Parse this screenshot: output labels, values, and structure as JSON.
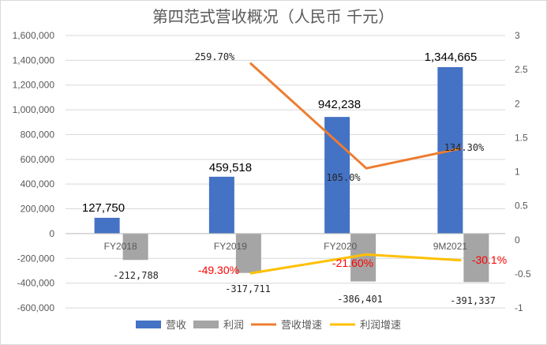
{
  "chart_data": {
    "type": "bar",
    "title": "第四范式营收概况（人民币 千元）",
    "categories": [
      "FY2018",
      "FY2019",
      "FY2020",
      "9M2021"
    ],
    "xlabel": "",
    "ylabel": "",
    "ylim": [
      -600000,
      1600000
    ],
    "y_ticks": [
      "1,600,000",
      "1,400,000",
      "1,200,000",
      "1,000,000",
      "800,000",
      "600,000",
      "400,000",
      "200,000",
      "0",
      "-200,000",
      "-400,000",
      "-600,000"
    ],
    "y2lim": [
      -1,
      3
    ],
    "y2_ticks": [
      "3",
      "2.5",
      "2",
      "1.5",
      "1",
      "0.5",
      "0",
      "-0.5",
      "-1"
    ],
    "grid": true,
    "legend_position": "bottom",
    "series": [
      {
        "name": "营收",
        "type": "bar",
        "axis": "left",
        "color": "#4472c4",
        "values": [
          127750,
          459518,
          942238,
          1344665
        ],
        "labels": [
          "127,750",
          "459,518",
          "942,238",
          "1,344,665"
        ]
      },
      {
        "name": "利润",
        "type": "bar",
        "axis": "left",
        "color": "#a5a5a5",
        "values": [
          -212788,
          -317711,
          -386401,
          -391337
        ],
        "labels": [
          "-212,788",
          "-317,711",
          "-386,401",
          "-391,337"
        ]
      },
      {
        "name": "营收增速",
        "type": "line",
        "axis": "right",
        "color": "#ed7d31",
        "values": [
          null,
          2.597,
          1.05,
          1.343
        ],
        "labels": [
          "",
          "259.70%",
          "105.0%",
          "134.30%"
        ]
      },
      {
        "name": "利润增速",
        "type": "line",
        "axis": "right",
        "color": "#ffc000",
        "values": [
          null,
          -0.493,
          -0.216,
          -0.301
        ],
        "labels": [
          "",
          "-49.30%",
          "-21.60%",
          "-30.1%"
        ]
      }
    ]
  }
}
